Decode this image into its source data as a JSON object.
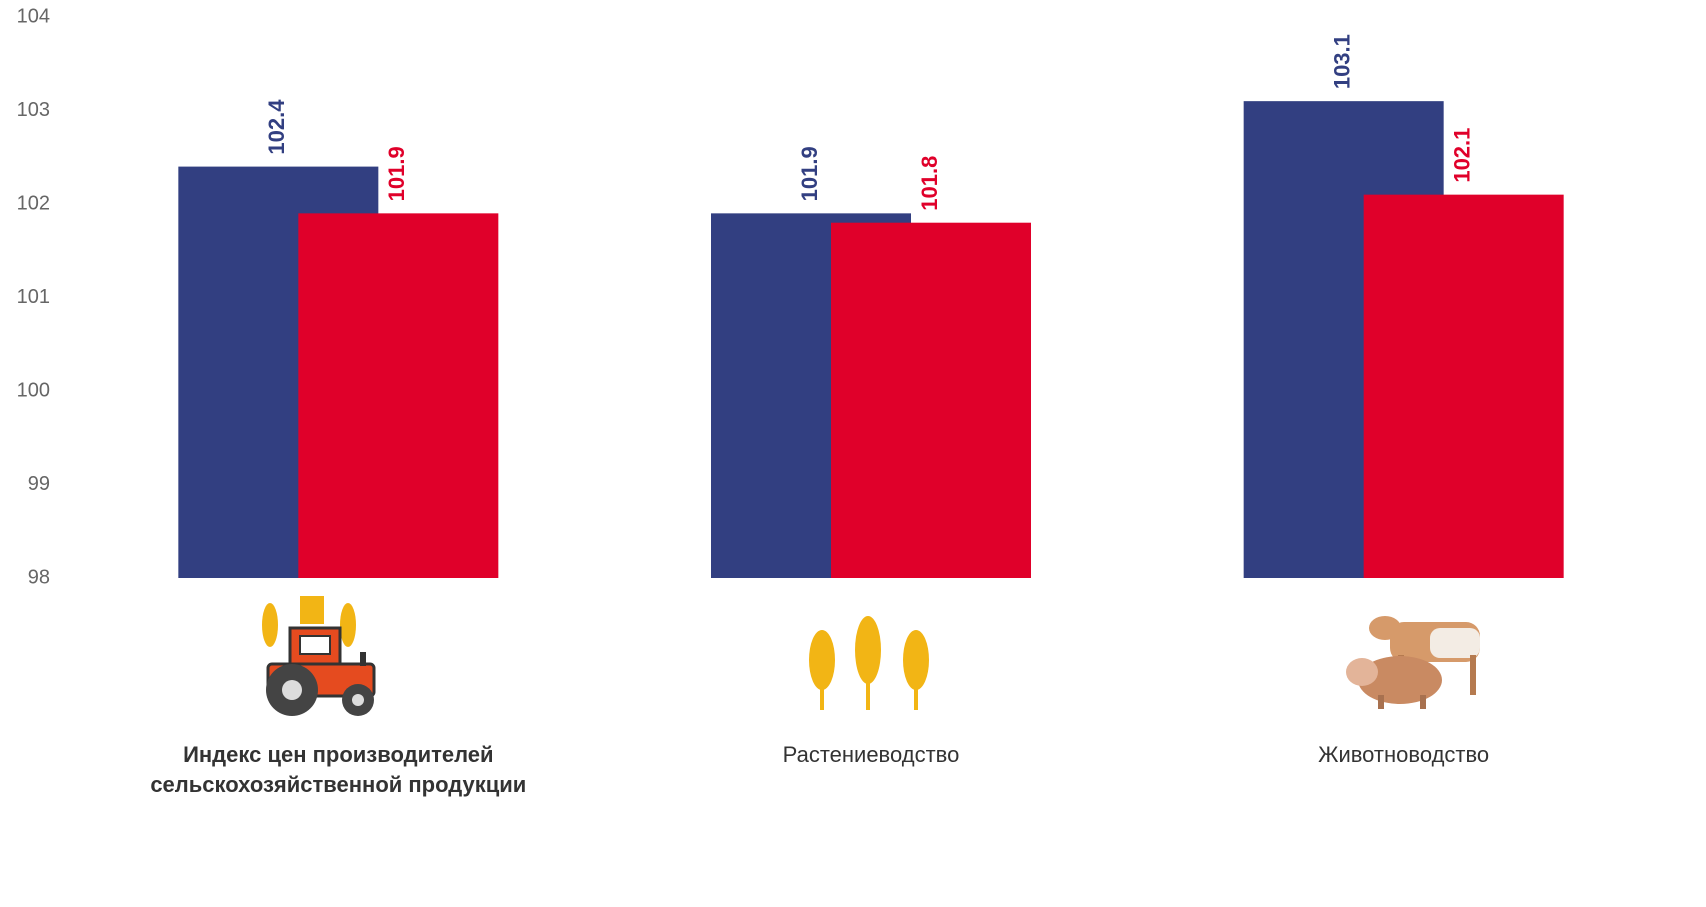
{
  "chart_data": {
    "type": "bar",
    "categories": [
      "Индекс цен производителей сельскохозяйственной продукции",
      "Растениеводство",
      "Животноводство"
    ],
    "series": [
      {
        "color": "#323f81",
        "values": [
          102.4,
          101.9,
          103.1
        ]
      },
      {
        "color": "#e0002a",
        "values": [
          101.9,
          101.8,
          102.1
        ]
      }
    ],
    "ylim": [
      98,
      104
    ],
    "yticks": [
      98,
      99,
      100,
      101,
      102,
      103,
      104
    ],
    "grid": false
  }
}
